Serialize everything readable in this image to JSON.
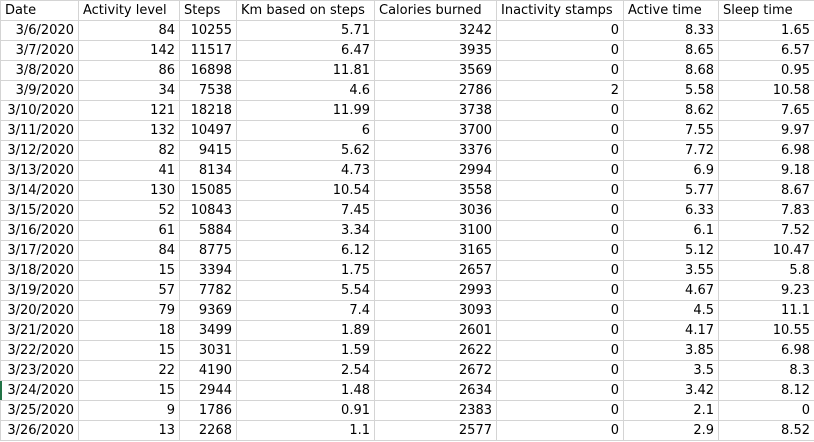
{
  "sheet": {
    "columns": [
      "Date",
      "Activity level",
      "Steps",
      "Km based on steps",
      "Calories burned",
      "Inactivity stamps",
      "Active time",
      "Sleep time"
    ],
    "rows": [
      [
        "3/6/2020",
        "84",
        "10255",
        "5.71",
        "3242",
        "0",
        "8.33",
        "1.65"
      ],
      [
        "3/7/2020",
        "142",
        "11517",
        "6.47",
        "3935",
        "0",
        "8.65",
        "6.57"
      ],
      [
        "3/8/2020",
        "86",
        "16898",
        "11.81",
        "3569",
        "0",
        "8.68",
        "0.95"
      ],
      [
        "3/9/2020",
        "34",
        "7538",
        "4.6",
        "2786",
        "2",
        "5.58",
        "10.58"
      ],
      [
        "3/10/2020",
        "121",
        "18218",
        "11.99",
        "3738",
        "0",
        "8.62",
        "7.65"
      ],
      [
        "3/11/2020",
        "132",
        "10497",
        "6",
        "3700",
        "0",
        "7.55",
        "9.97"
      ],
      [
        "3/12/2020",
        "82",
        "9415",
        "5.62",
        "3376",
        "0",
        "7.72",
        "6.98"
      ],
      [
        "3/13/2020",
        "41",
        "8134",
        "4.73",
        "2994",
        "0",
        "6.9",
        "9.18"
      ],
      [
        "3/14/2020",
        "130",
        "15085",
        "10.54",
        "3558",
        "0",
        "5.77",
        "8.67"
      ],
      [
        "3/15/2020",
        "52",
        "10843",
        "7.45",
        "3036",
        "0",
        "6.33",
        "7.83"
      ],
      [
        "3/16/2020",
        "61",
        "5884",
        "3.34",
        "3100",
        "0",
        "6.1",
        "7.52"
      ],
      [
        "3/17/2020",
        "84",
        "8775",
        "6.12",
        "3165",
        "0",
        "5.12",
        "10.47"
      ],
      [
        "3/18/2020",
        "15",
        "3394",
        "1.75",
        "2657",
        "0",
        "3.55",
        "5.8"
      ],
      [
        "3/19/2020",
        "57",
        "7782",
        "5.54",
        "2993",
        "0",
        "4.67",
        "9.23"
      ],
      [
        "3/20/2020",
        "79",
        "9369",
        "7.4",
        "3093",
        "0",
        "4.5",
        "11.1"
      ],
      [
        "3/21/2020",
        "18",
        "3499",
        "1.89",
        "2601",
        "0",
        "4.17",
        "10.55"
      ],
      [
        "3/22/2020",
        "15",
        "3031",
        "1.59",
        "2622",
        "0",
        "3.85",
        "6.98"
      ],
      [
        "3/23/2020",
        "22",
        "4190",
        "2.54",
        "2672",
        "0",
        "3.5",
        "8.3"
      ],
      [
        "3/24/2020",
        "15",
        "2944",
        "1.48",
        "2634",
        "0",
        "3.42",
        "8.12"
      ],
      [
        "3/25/2020",
        "9",
        "1786",
        "0.91",
        "2383",
        "0",
        "2.1",
        "0"
      ],
      [
        "3/26/2020",
        "13",
        "2268",
        "1.1",
        "2577",
        "0",
        "2.9",
        "8.52"
      ]
    ]
  }
}
